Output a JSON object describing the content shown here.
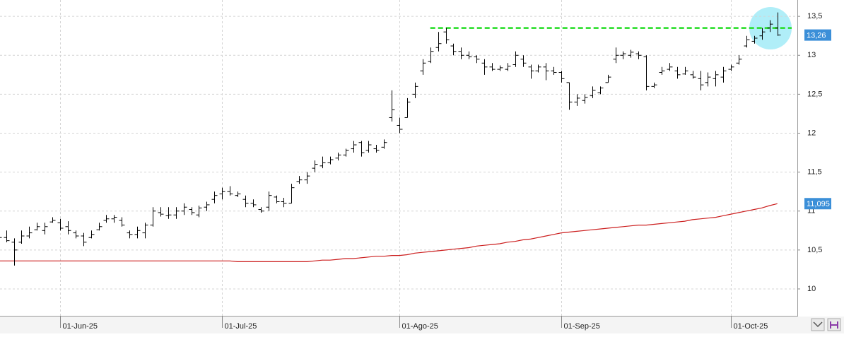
{
  "chart_data": {
    "type": "ohlc",
    "categories": [
      null,
      null,
      null,
      null,
      null,
      null,
      null,
      null,
      "01-Jun-25",
      null,
      null,
      null,
      null,
      null,
      null,
      null,
      null,
      null,
      null,
      null,
      null,
      null,
      null,
      null,
      null,
      null,
      null,
      null,
      null,
      "01-Jul-25",
      null,
      null,
      null,
      null,
      null,
      null,
      null,
      null,
      null,
      null,
      null,
      null,
      null,
      null,
      null,
      null,
      null,
      null,
      null,
      null,
      null,
      null,
      "01-Ago-25",
      null,
      null,
      null,
      null,
      null,
      null,
      null,
      null,
      null,
      null,
      null,
      null,
      null,
      null,
      null,
      null,
      null,
      null,
      null,
      null,
      "01-Sep-25",
      null,
      null,
      null,
      null,
      null,
      null,
      null,
      null,
      null,
      null,
      null,
      null,
      null,
      null,
      null,
      null,
      null,
      null,
      null,
      null,
      null,
      "01-Oct-25",
      null,
      null,
      null,
      null,
      null,
      null
    ],
    "ohlc": {
      "color": "#000000",
      "open": [
        10.68,
        10.66,
        10.6,
        10.6,
        10.68,
        10.76,
        10.75,
        10.86,
        10.85,
        10.8,
        10.72,
        10.68,
        10.66,
        10.76,
        10.88,
        10.9,
        10.88,
        10.72,
        10.7,
        10.72,
        10.82,
        10.98,
        10.94,
        10.95,
        11.0,
        11.02,
        10.95,
        11.05,
        11.15,
        11.22,
        11.25,
        11.2,
        11.15,
        11.1,
        11.02,
        11.05,
        11.18,
        11.12,
        11.1,
        11.38,
        11.4,
        11.55,
        11.58,
        11.62,
        11.68,
        11.72,
        11.8,
        11.88,
        11.78,
        11.8,
        11.82,
        12.2,
        12.1,
        12.2,
        12.5,
        12.8,
        12.92,
        13.1,
        13.3,
        13.12,
        13.05,
        13.0,
        12.98,
        12.9,
        12.85,
        12.82,
        12.82,
        12.88,
        12.95,
        12.85,
        12.8,
        12.85,
        12.8,
        12.78,
        12.65,
        12.4,
        12.42,
        12.48,
        12.52,
        12.65,
        12.95,
        13.0,
        13.0,
        13.02,
        12.98,
        12.6,
        12.78,
        12.82,
        12.8,
        12.76,
        12.75,
        12.7,
        12.65,
        12.7,
        12.72,
        12.82,
        12.9,
        13.12,
        13.18,
        13.25,
        13.35,
        13.35
      ],
      "high": [
        10.72,
        10.75,
        10.65,
        10.75,
        10.8,
        10.85,
        10.85,
        10.92,
        10.9,
        10.87,
        10.75,
        10.72,
        10.75,
        10.85,
        10.95,
        10.95,
        10.92,
        10.75,
        10.8,
        10.85,
        11.05,
        11.05,
        11.05,
        11.05,
        11.1,
        11.05,
        11.07,
        11.12,
        11.25,
        11.3,
        11.32,
        11.25,
        11.2,
        11.15,
        11.05,
        11.25,
        11.2,
        11.17,
        11.35,
        11.45,
        11.5,
        11.65,
        11.7,
        11.7,
        11.75,
        11.8,
        11.9,
        11.9,
        11.9,
        11.85,
        11.92,
        12.55,
        12.2,
        12.45,
        12.65,
        12.95,
        13.1,
        13.3,
        13.35,
        13.15,
        13.1,
        13.05,
        13.0,
        12.95,
        12.9,
        12.87,
        12.9,
        13.05,
        13.0,
        12.88,
        12.88,
        12.9,
        12.85,
        12.8,
        12.65,
        12.5,
        12.5,
        12.6,
        12.6,
        12.75,
        13.1,
        13.05,
        13.07,
        13.05,
        13.0,
        12.65,
        12.85,
        12.9,
        12.85,
        12.85,
        12.8,
        12.8,
        12.78,
        12.8,
        12.85,
        12.88,
        13.0,
        13.25,
        13.25,
        13.35,
        13.45,
        13.55
      ],
      "low": [
        10.62,
        10.6,
        10.3,
        10.58,
        10.65,
        10.75,
        10.7,
        10.85,
        10.75,
        10.7,
        10.65,
        10.55,
        10.65,
        10.75,
        10.85,
        10.85,
        10.8,
        10.65,
        10.65,
        10.65,
        10.8,
        10.93,
        10.9,
        10.9,
        10.95,
        10.95,
        10.92,
        11.0,
        11.1,
        11.15,
        11.2,
        11.18,
        11.05,
        11.05,
        10.98,
        11.0,
        11.1,
        11.05,
        11.1,
        11.35,
        11.35,
        11.5,
        11.55,
        11.6,
        11.65,
        11.7,
        11.75,
        11.7,
        11.75,
        11.75,
        11.8,
        12.15,
        12.0,
        12.2,
        12.45,
        12.75,
        12.9,
        13.05,
        13.15,
        13.0,
        12.95,
        12.95,
        12.9,
        12.75,
        12.8,
        12.8,
        12.8,
        12.85,
        12.85,
        12.7,
        12.78,
        12.68,
        12.75,
        12.65,
        12.3,
        12.35,
        12.38,
        12.45,
        12.5,
        12.65,
        12.9,
        12.95,
        12.97,
        12.95,
        12.55,
        12.58,
        12.75,
        12.8,
        12.7,
        12.75,
        12.7,
        12.55,
        12.6,
        12.6,
        12.65,
        12.8,
        12.88,
        13.1,
        13.15,
        13.2,
        13.3,
        13.25
      ],
      "close": [
        10.66,
        10.62,
        10.5,
        10.68,
        10.72,
        10.8,
        10.8,
        10.88,
        10.78,
        10.75,
        10.68,
        10.6,
        10.7,
        10.8,
        10.9,
        10.92,
        10.82,
        10.7,
        10.75,
        10.82,
        11.0,
        10.96,
        10.95,
        11.0,
        11.05,
        10.98,
        11.04,
        11.08,
        11.2,
        11.25,
        11.22,
        11.22,
        11.1,
        11.08,
        11.0,
        11.2,
        11.12,
        11.1,
        11.3,
        11.4,
        11.45,
        11.6,
        11.62,
        11.66,
        11.72,
        11.78,
        11.85,
        11.75,
        11.85,
        11.78,
        11.88,
        12.3,
        12.05,
        12.4,
        12.6,
        12.9,
        13.05,
        13.15,
        13.2,
        13.05,
        13.0,
        12.98,
        12.95,
        12.85,
        12.82,
        12.84,
        12.86,
        13.0,
        12.9,
        12.8,
        12.85,
        12.8,
        12.78,
        12.7,
        12.4,
        12.45,
        12.46,
        12.55,
        12.58,
        12.72,
        13.0,
        13.02,
        13.04,
        13.0,
        12.6,
        12.62,
        12.8,
        12.85,
        12.75,
        12.8,
        12.72,
        12.62,
        12.72,
        12.75,
        12.8,
        12.85,
        12.95,
        13.2,
        13.22,
        13.3,
        13.4,
        13.26
      ],
      "last_label": "13,26",
      "label_color": "#3b8fd8"
    },
    "moving_average": {
      "color": "#cc1f1f",
      "values": [
        10.36,
        10.36,
        10.36,
        10.36,
        10.36,
        10.36,
        10.36,
        10.36,
        10.36,
        10.36,
        10.36,
        10.36,
        10.36,
        10.36,
        10.36,
        10.36,
        10.36,
        10.36,
        10.36,
        10.36,
        10.36,
        10.36,
        10.36,
        10.36,
        10.36,
        10.36,
        10.36,
        10.36,
        10.36,
        10.36,
        10.36,
        10.35,
        10.35,
        10.35,
        10.35,
        10.35,
        10.35,
        10.35,
        10.35,
        10.35,
        10.35,
        10.36,
        10.37,
        10.37,
        10.38,
        10.39,
        10.39,
        10.4,
        10.41,
        10.42,
        10.42,
        10.43,
        10.43,
        10.44,
        10.46,
        10.47,
        10.48,
        10.49,
        10.5,
        10.51,
        10.52,
        10.53,
        10.55,
        10.56,
        10.57,
        10.58,
        10.6,
        10.61,
        10.63,
        10.64,
        10.66,
        10.68,
        10.7,
        10.72,
        10.73,
        10.74,
        10.75,
        10.76,
        10.77,
        10.78,
        10.79,
        10.8,
        10.81,
        10.82,
        10.82,
        10.83,
        10.84,
        10.85,
        10.86,
        10.87,
        10.89,
        10.9,
        10.91,
        10.92,
        10.94,
        10.96,
        10.98,
        11.0,
        11.02,
        11.04,
        11.07,
        11.095
      ],
      "last_label": "11,095",
      "label_color": "#3b8fd8"
    },
    "resistance": {
      "value": 13.35,
      "start_index": 56,
      "color": "#22dd22"
    },
    "ylim": [
      9.655,
      13.71
    ],
    "yticks": [
      10,
      {
        "value": 10.5,
        "label": "10,5"
      },
      11,
      {
        "value": 11.5,
        "label": "11,5"
      },
      12,
      {
        "value": 12.5,
        "label": "12,5"
      },
      13,
      {
        "value": 13.5,
        "label": "13,5"
      }
    ],
    "grid": true
  }
}
